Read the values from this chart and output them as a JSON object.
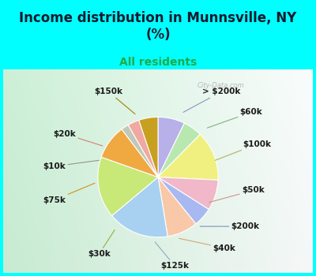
{
  "title": "Income distribution in Munnsville, NY\n(%)",
  "subtitle": "All residents",
  "background_color": "#00FFFF",
  "watermark": "City-Data.com",
  "title_fontsize": 12,
  "subtitle_fontsize": 10,
  "label_fontsize": 7.5,
  "labels": [
    "> $200k",
    "$60k",
    "$100k",
    "$50k",
    "$200k",
    "$40k",
    "$125k",
    "$30k",
    "$75k",
    "$10k",
    "$20k",
    "$150k"
  ],
  "values": [
    7,
    5,
    13,
    8,
    5,
    8,
    16,
    16,
    9,
    2,
    3,
    5
  ],
  "colors": [
    "#b8b0e8",
    "#b8e8b0",
    "#f0f080",
    "#f0b8c8",
    "#a8b8f0",
    "#f8c8a8",
    "#a8d0f0",
    "#c8e878",
    "#f0a840",
    "#c0c8b8",
    "#f0a8a0",
    "#c8a020"
  ],
  "line_colors": [
    "#9090c0",
    "#90c890",
    "#c0c060",
    "#e09090",
    "#8090e0",
    "#e0a870",
    "#80a8e0",
    "#a0c850",
    "#e09020",
    "#909880",
    "#e08070",
    "#a08010"
  ]
}
